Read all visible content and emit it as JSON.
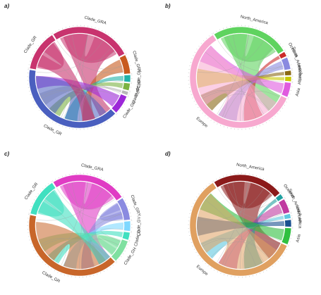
{
  "panels": [
    {
      "letter": "a)",
      "cx": 0,
      "cy": 0,
      "sectors": [
        {
          "name": "Clade_GRA",
          "value": 34,
          "color": "#c8336e"
        },
        {
          "name": "Clade_GRY",
          "value": 8,
          "color": "#c85a1e"
        },
        {
          "name": "Clade_GV",
          "value": 3,
          "color": "#20b2aa"
        },
        {
          "name": "Clade_O",
          "value": 3,
          "color": "#7cb342"
        },
        {
          "name": "Clade_S",
          "value": 1.5,
          "color": "#b8b8b8"
        },
        {
          "name": "Clade_GH",
          "value": 8,
          "color": "#9c27d8"
        },
        {
          "name": "Clade_GR",
          "value": 52,
          "color": "#4a5fbf"
        },
        {
          "name": "Clade_GR",
          "value": 17,
          "color": "#c8336e"
        }
      ],
      "labels": [
        "Clade_GRA",
        "Clade_GRY",
        "Clade_GV",
        "Clade_O",
        "Clade_S",
        "Clade_GH",
        "Clade_GR",
        "Clade_GR"
      ]
    },
    {
      "letter": "b)",
      "sectors": [
        {
          "name": "North_America",
          "value": 32,
          "color": "#5fd35f"
        },
        {
          "name": "Oceania",
          "value": 2,
          "color": "#cc2b2b"
        },
        {
          "name": "South_America",
          "value": 5,
          "color": "#8a8ae0"
        },
        {
          "name": "Unknown",
          "value": 2,
          "color": "#8b6914"
        },
        {
          "name": "Africa",
          "value": 2,
          "color": "#c8c800"
        },
        {
          "name": "Asia",
          "value": 6,
          "color": "#e05adf"
        },
        {
          "name": "Europe",
          "value": 76,
          "color": "#f7a8cf"
        }
      ],
      "labels": [
        "North_America",
        "Oceania",
        "South_America",
        "Unknown",
        "Africa",
        "Asia",
        "Europe"
      ]
    },
    {
      "letter": "c)",
      "sectors": [
        {
          "name": "Clade_GRA",
          "value": 30,
          "color": "#e03cc4"
        },
        {
          "name": "Clade_GRY",
          "value": 9,
          "color": "#8a8ae0"
        },
        {
          "name": "Clade_GV",
          "value": 4,
          "color": "#7fd8ff"
        },
        {
          "name": "Clade_O",
          "value": 3,
          "color": "#40e0c0"
        },
        {
          "name": "Clade_GH",
          "value": 9,
          "color": "#7fe0a0"
        },
        {
          "name": "Clade_GR",
          "value": 50,
          "color": "#c8662a"
        },
        {
          "name": "Clade_GR",
          "value": 15,
          "color": "#40e0c0"
        }
      ],
      "labels": [
        "Clade_GRA",
        "Clade_GRY",
        "Clade_GV",
        "Clade_O",
        "Clade_GH",
        "Clade_GR",
        "Clade_GR"
      ]
    },
    {
      "letter": "d)",
      "sectors": [
        {
          "name": "North_America",
          "value": 30,
          "color": "#8b1a1a"
        },
        {
          "name": "Oceania",
          "value": 2,
          "color": "#20a0a0"
        },
        {
          "name": "South_America",
          "value": 6,
          "color": "#c03aa0"
        },
        {
          "name": "Unknown",
          "value": 2,
          "color": "#5fc8e0"
        },
        {
          "name": "Africa",
          "value": 3,
          "color": "#1a5090"
        },
        {
          "name": "Asia",
          "value": 7,
          "color": "#30c040"
        },
        {
          "name": "Europe",
          "value": 78,
          "color": "#e0a060"
        }
      ],
      "labels": [
        "North_America",
        "Oceania",
        "South_America",
        "Unknown",
        "Africa",
        "Asia",
        "Europe"
      ]
    }
  ]
}
